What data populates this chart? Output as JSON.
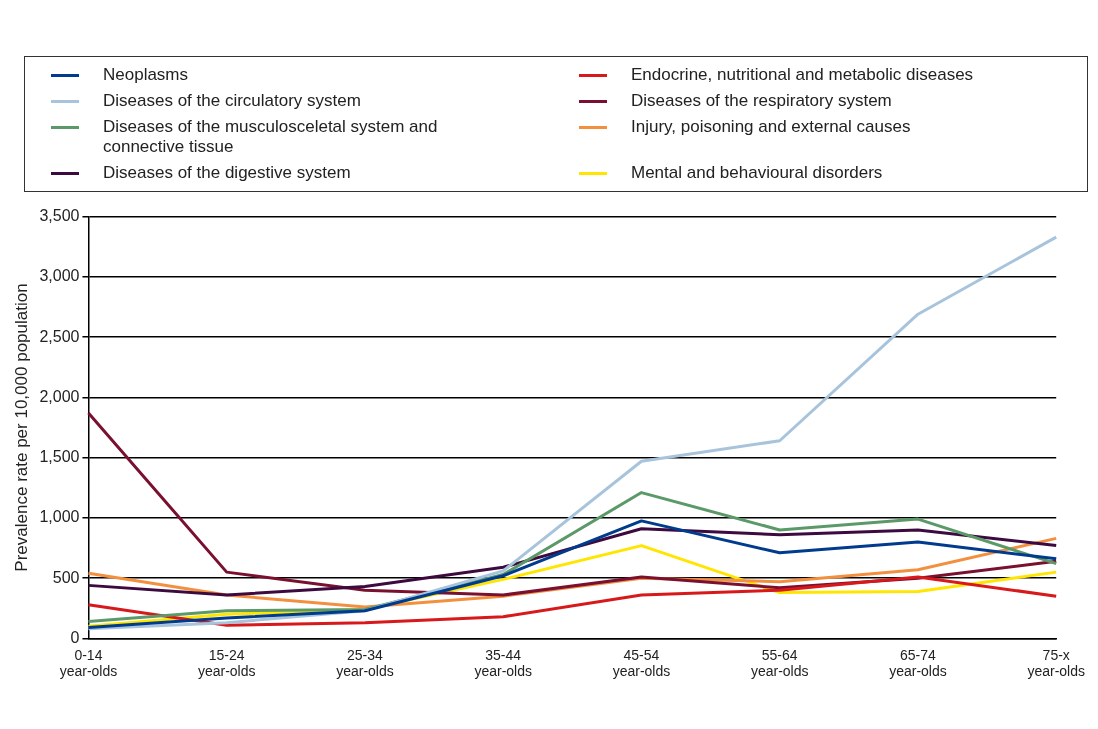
{
  "chart_data": {
    "type": "line",
    "ylabel": "Prevalence rate per 10,000 population",
    "categories": [
      "0-14 year-olds",
      "15-24 year-olds",
      "25-34 year-olds",
      "35-44 year-olds",
      "45-54 year-olds",
      "55-64 year-olds",
      "65-74 year-olds",
      "75-x year-olds"
    ],
    "ylim": [
      0,
      3500
    ],
    "yticks": [
      {
        "value": 0,
        "label": "0"
      },
      {
        "value": 500,
        "label": "500"
      },
      {
        "value": 1000,
        "label": "1,000"
      },
      {
        "value": 1500,
        "label": "1,500"
      },
      {
        "value": 2000,
        "label": "2,000"
      },
      {
        "value": 2500,
        "label": "2,500"
      },
      {
        "value": 3000,
        "label": "3,000"
      },
      {
        "value": 3500,
        "label": "3,500"
      }
    ],
    "grid": "y",
    "legend": "top",
    "marker": "none",
    "line_style": "solid",
    "series": [
      {
        "name": "Neoplasms",
        "color": "#003b8e",
        "values": [
          90,
          170,
          230,
          520,
          975,
          710,
          800,
          660
        ]
      },
      {
        "name": "Diseases of the circulatory system",
        "color": "#a7c4dc",
        "values": [
          80,
          130,
          230,
          560,
          1470,
          1640,
          2690,
          3330
        ]
      },
      {
        "name": "Diseases of the musculosceletal system and connective tissue",
        "color": "#5b9a68",
        "values": [
          140,
          230,
          240,
          530,
          1210,
          900,
          990,
          620
        ]
      },
      {
        "name": "Diseases of the digestive system",
        "color": "#3d0a3f",
        "values": [
          440,
          360,
          430,
          590,
          910,
          860,
          900,
          770
        ]
      },
      {
        "name": "Endocrine, nutritional and metabolic diseases",
        "color": "#d7191c",
        "values": [
          280,
          110,
          130,
          180,
          360,
          400,
          510,
          350
        ]
      },
      {
        "name": "Diseases of the respiratory system",
        "color": "#7a1030",
        "values": [
          1870,
          550,
          400,
          360,
          510,
          420,
          500,
          640
        ]
      },
      {
        "name": "Injury, poisoning and external causes",
        "color": "#f39040",
        "values": [
          540,
          360,
          260,
          350,
          500,
          470,
          570,
          830
        ]
      },
      {
        "name": "Mental and behavioural disorders",
        "color": "#ffe600",
        "values": [
          100,
          200,
          240,
          490,
          770,
          380,
          390,
          550
        ]
      }
    ]
  }
}
